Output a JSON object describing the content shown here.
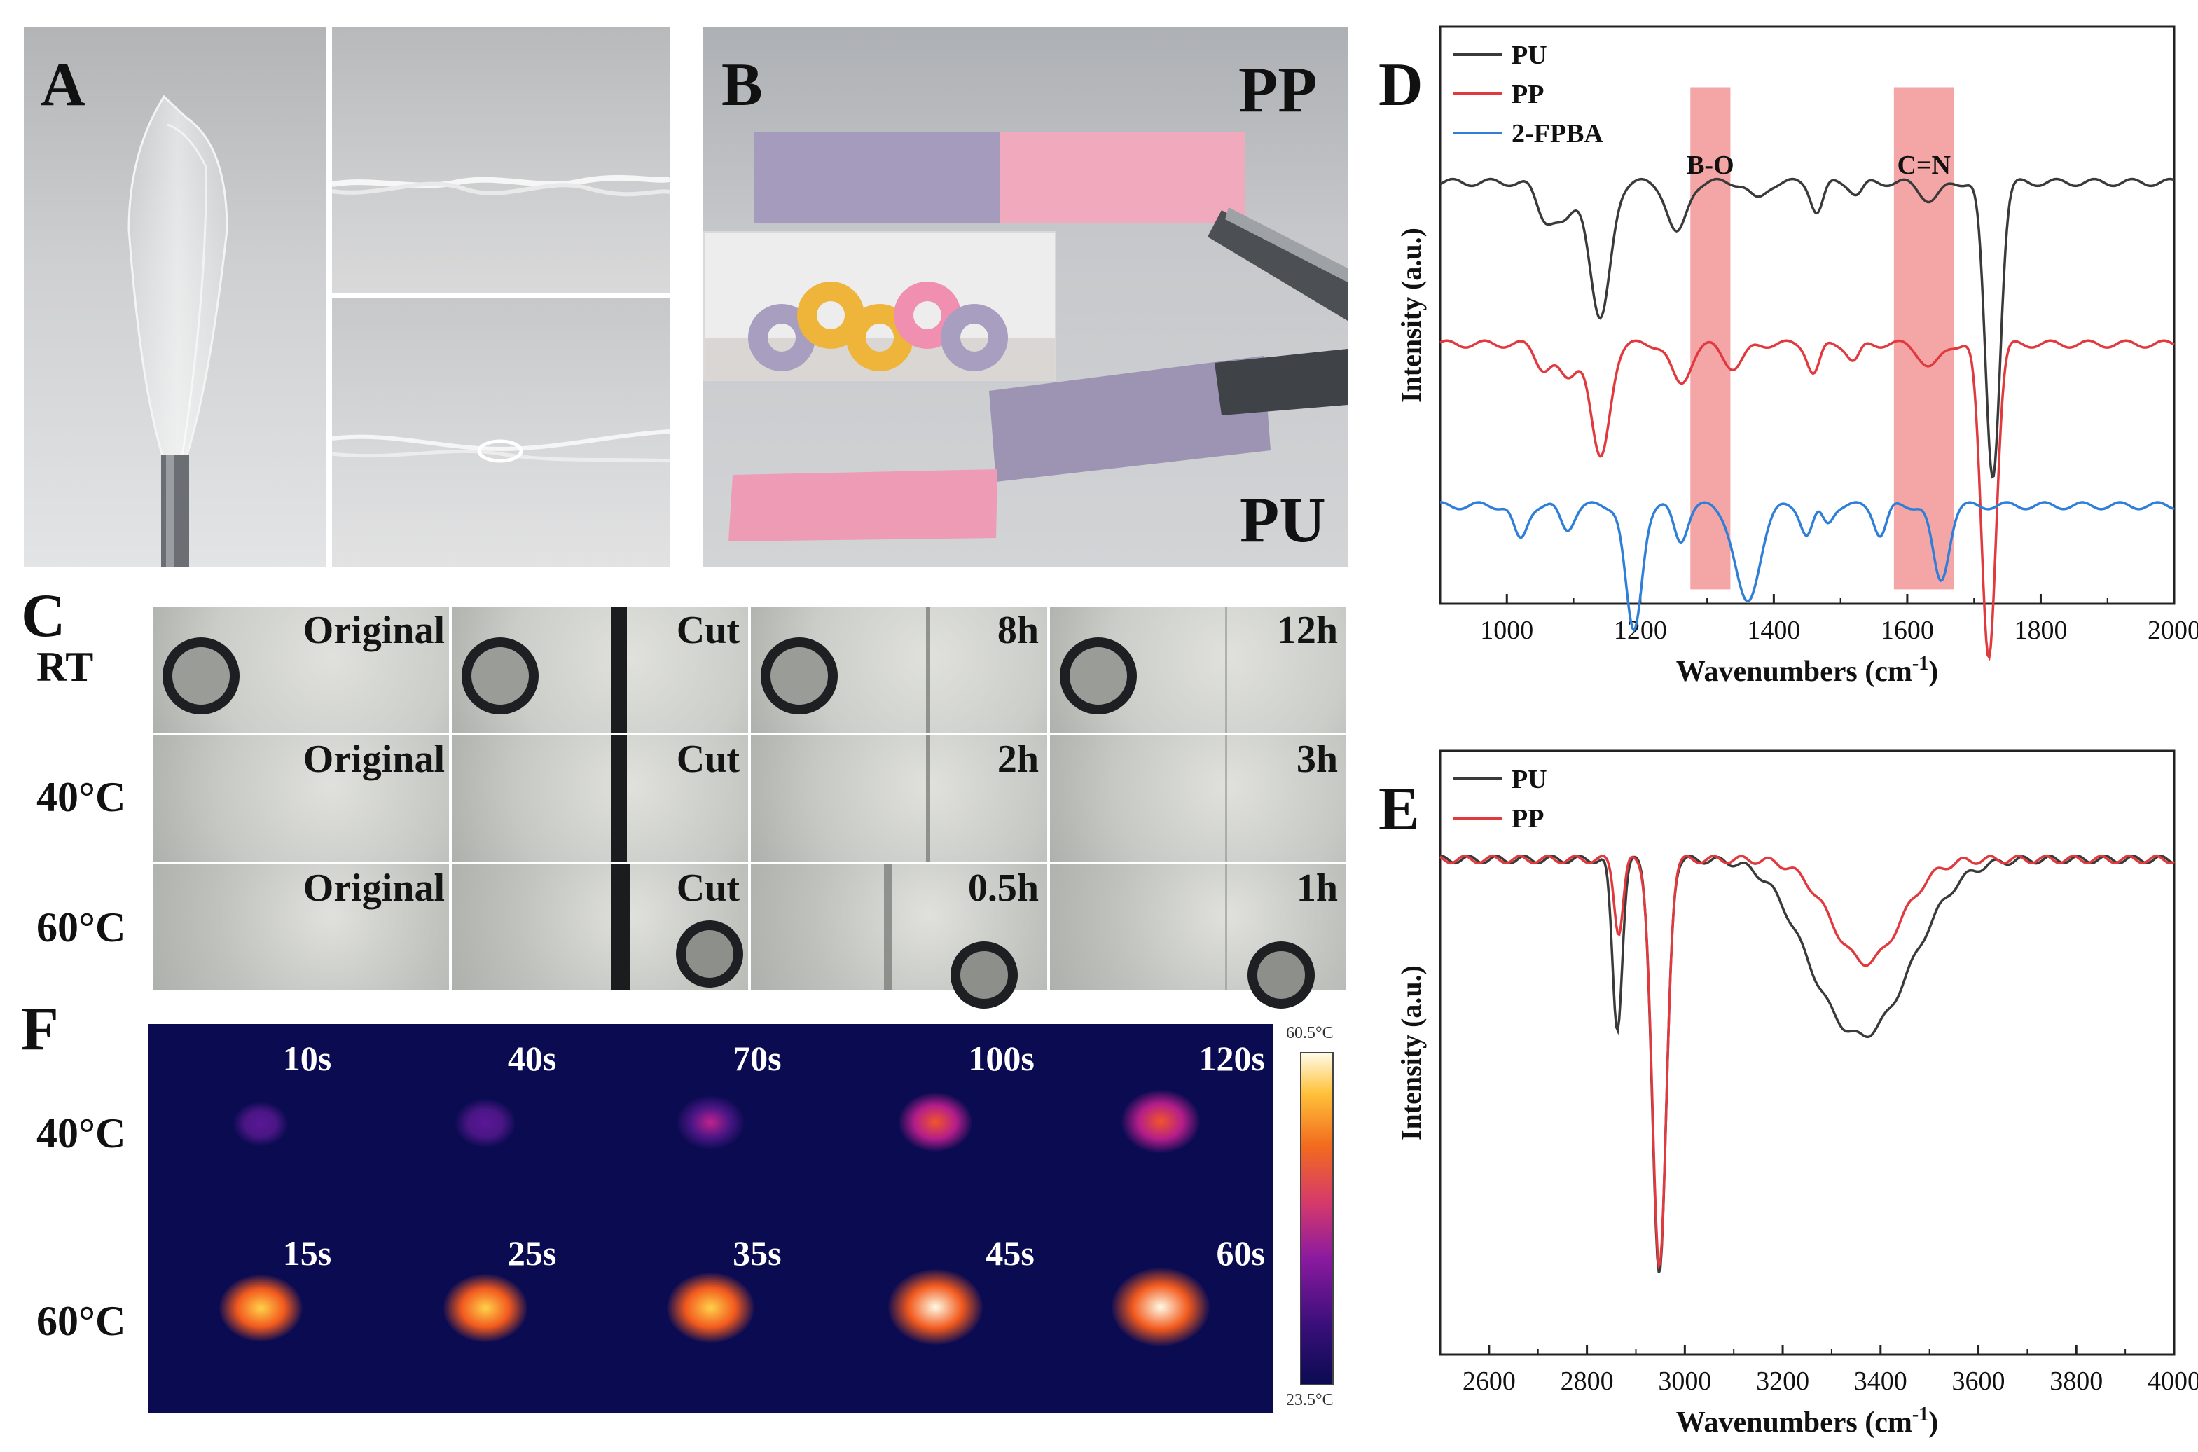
{
  "figure": {
    "panels": {
      "A": "A",
      "B": "B",
      "C": "C",
      "D": "D",
      "E": "E",
      "F": "F"
    },
    "panel_b": {
      "top_label": "PP",
      "bottom_label": "PU"
    },
    "panel_c": {
      "rows": [
        {
          "label": "RT",
          "cells": [
            "Original",
            "Cut",
            "8h",
            "12h"
          ]
        },
        {
          "label": "40°C",
          "cells": [
            "Original",
            "Cut",
            "2h",
            "3h"
          ]
        },
        {
          "label": "60°C",
          "cells": [
            "Original",
            "Cut",
            "0.5h",
            "1h"
          ]
        }
      ]
    },
    "panel_f": {
      "rows": [
        {
          "label": "40°C",
          "times": [
            "10s",
            "40s",
            "70s",
            "100s",
            "120s"
          ],
          "intensity": [
            0.12,
            0.22,
            0.38,
            0.5,
            0.6
          ]
        },
        {
          "label": "60°C",
          "times": [
            "15s",
            "25s",
            "35s",
            "45s",
            "60s"
          ],
          "intensity": [
            0.7,
            0.72,
            0.78,
            0.92,
            1.0
          ]
        }
      ],
      "scale_max": "60.5°C",
      "scale_min": "23.5°C"
    }
  },
  "colors": {
    "PU": "#3a3a3a",
    "PP": "#e0393e",
    "2-FPBA": "#2f7fd8",
    "band": "#f08080"
  },
  "chart_data": [
    {
      "type": "line",
      "title": "",
      "xlabel": "Wavenumbers (cm",
      "xlabel_sup": "-1",
      "xlabel_close": ")",
      "ylabel": "Intensity (a.u.)",
      "xlim": [
        900,
        2000
      ],
      "xticks": [
        "1000",
        "1200",
        "1400",
        "1600",
        "1800",
        "2000"
      ],
      "legend": [
        "PU",
        "PP",
        "2-FPBA"
      ],
      "legend_position": "top-left",
      "annotations": [
        "B-O",
        "C=N"
      ],
      "bands": [
        [
          1275,
          1335
        ],
        [
          1580,
          1670
        ]
      ],
      "series": [
        {
          "name": "PU",
          "offset": 0.73,
          "dips": [
            [
              1055,
              0.05,
              12
            ],
            [
              1085,
              0.07,
              16
            ],
            [
              1140,
              0.24,
              15
            ],
            [
              1255,
              0.09,
              14
            ],
            [
              1375,
              0.03,
              12
            ],
            [
              1465,
              0.05,
              9
            ],
            [
              1525,
              0.02,
              9
            ],
            [
              1635,
              0.03,
              15
            ],
            [
              1728,
              0.51,
              11
            ]
          ]
        },
        {
          "name": "PP",
          "offset": 0.45,
          "dips": [
            [
              1055,
              0.04,
              12
            ],
            [
              1090,
              0.06,
              14
            ],
            [
              1140,
              0.2,
              14
            ],
            [
              1260,
              0.07,
              14
            ],
            [
              1340,
              0.04,
              15
            ],
            [
              1460,
              0.05,
              9
            ],
            [
              1520,
              0.03,
              9
            ],
            [
              1635,
              0.04,
              15
            ],
            [
              1722,
              0.54,
              11
            ]
          ]
        },
        {
          "name": "2-FPBA",
          "offset": 0.17,
          "dips": [
            [
              1020,
              0.06,
              10
            ],
            [
              1090,
              0.04,
              10
            ],
            [
              1190,
              0.22,
              12
            ],
            [
              1260,
              0.06,
              10
            ],
            [
              1360,
              0.17,
              18
            ],
            [
              1450,
              0.05,
              9
            ],
            [
              1480,
              0.03,
              8
            ],
            [
              1560,
              0.05,
              9
            ],
            [
              1650,
              0.13,
              12
            ]
          ]
        }
      ]
    },
    {
      "type": "line",
      "title": "",
      "xlabel": "Wavenumbers (cm",
      "xlabel_sup": "-1",
      "xlabel_close": ")",
      "ylabel": "Intensity (a.u.)",
      "xlim": [
        2500,
        4000
      ],
      "xticks": [
        "2600",
        "2800",
        "3000",
        "3200",
        "3400",
        "3600",
        "3800",
        "4000"
      ],
      "legend": [
        "PU",
        "PP"
      ],
      "legend_position": "top-left",
      "series": [
        {
          "name": "PU",
          "offset": 0.82,
          "dips": [
            [
              2862,
              0.28,
              10
            ],
            [
              2948,
              0.69,
              14
            ],
            [
              3370,
              0.28,
              95
            ],
            [
              3270,
              0.04,
              60
            ]
          ]
        },
        {
          "name": "PP",
          "offset": 0.82,
          "dips": [
            [
              2865,
              0.12,
              9
            ],
            [
              2948,
              0.68,
              14
            ],
            [
              3370,
              0.17,
              70
            ]
          ]
        }
      ]
    }
  ]
}
